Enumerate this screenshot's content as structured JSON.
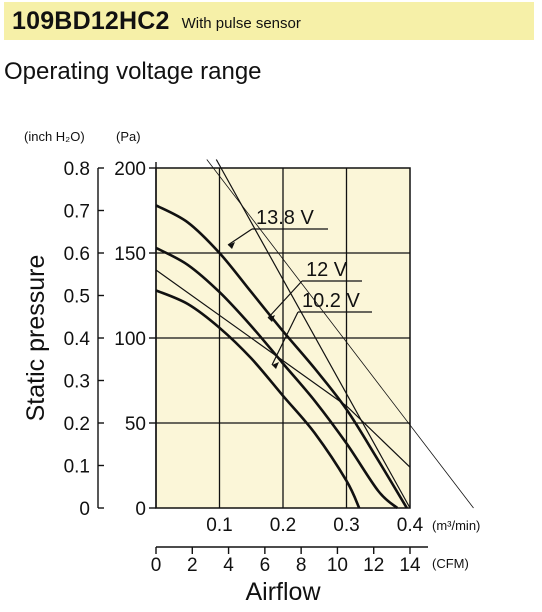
{
  "header": {
    "model": "109BD12HC2",
    "variant": "With pulse sensor",
    "background": "#f6f0a8"
  },
  "section_title": "Operating voltage range",
  "chart_data": {
    "type": "line",
    "title": "Operating voltage range",
    "ylabel": "Static pressure",
    "xlabel": "Airflow",
    "y_units": {
      "inch": "(inch H₂O)",
      "pa": "(Pa)"
    },
    "x_units": {
      "m3": "(m³/min)",
      "cfm": "(CFM)"
    },
    "xlim_m3": [
      0,
      0.4
    ],
    "ylim_pa": [
      0,
      200
    ],
    "x_ticks_m3": [
      "0.1",
      "0.2",
      "0.3",
      "0.4"
    ],
    "y_ticks_pa": [
      "0",
      "50",
      "100",
      "150",
      "200"
    ],
    "y_ticks_inch": [
      "0",
      "0.1",
      "0.2",
      "0.3",
      "0.4",
      "0.5",
      "0.6",
      "0.7",
      "0.8"
    ],
    "x_ticks_cfm": [
      "0",
      "2",
      "4",
      "6",
      "8",
      "10",
      "12",
      "14"
    ],
    "plot_background": "#fbf6d8",
    "grid": true,
    "series": [
      {
        "name": "13.8 V",
        "x": [
          0,
          0.05,
          0.1,
          0.15,
          0.2,
          0.25,
          0.3,
          0.35,
          0.395
        ],
        "y": [
          178,
          168,
          150,
          127,
          104,
          82,
          58,
          28,
          0
        ]
      },
      {
        "name": "12 V",
        "x": [
          0,
          0.05,
          0.1,
          0.15,
          0.2,
          0.25,
          0.3,
          0.35,
          0.38
        ],
        "y": [
          153,
          143,
          127,
          107,
          85,
          63,
          38,
          10,
          0
        ]
      },
      {
        "name": "10.2 V",
        "x": [
          0,
          0.05,
          0.1,
          0.15,
          0.2,
          0.25,
          0.3,
          0.32
        ],
        "y": [
          128,
          120,
          106,
          88,
          66,
          44,
          16,
          0
        ]
      }
    ],
    "load_lines": [
      {
        "x": [
          0.095,
          0.4
        ],
        "y": [
          205,
          0
        ]
      },
      {
        "x": [
          0,
          0.3,
          0.4
        ],
        "y": [
          140,
          60,
          24
        ]
      }
    ],
    "reference_line": {
      "x": [
        0.08,
        0.5
      ],
      "y": [
        205,
        0
      ]
    },
    "line_color": "#111111"
  }
}
